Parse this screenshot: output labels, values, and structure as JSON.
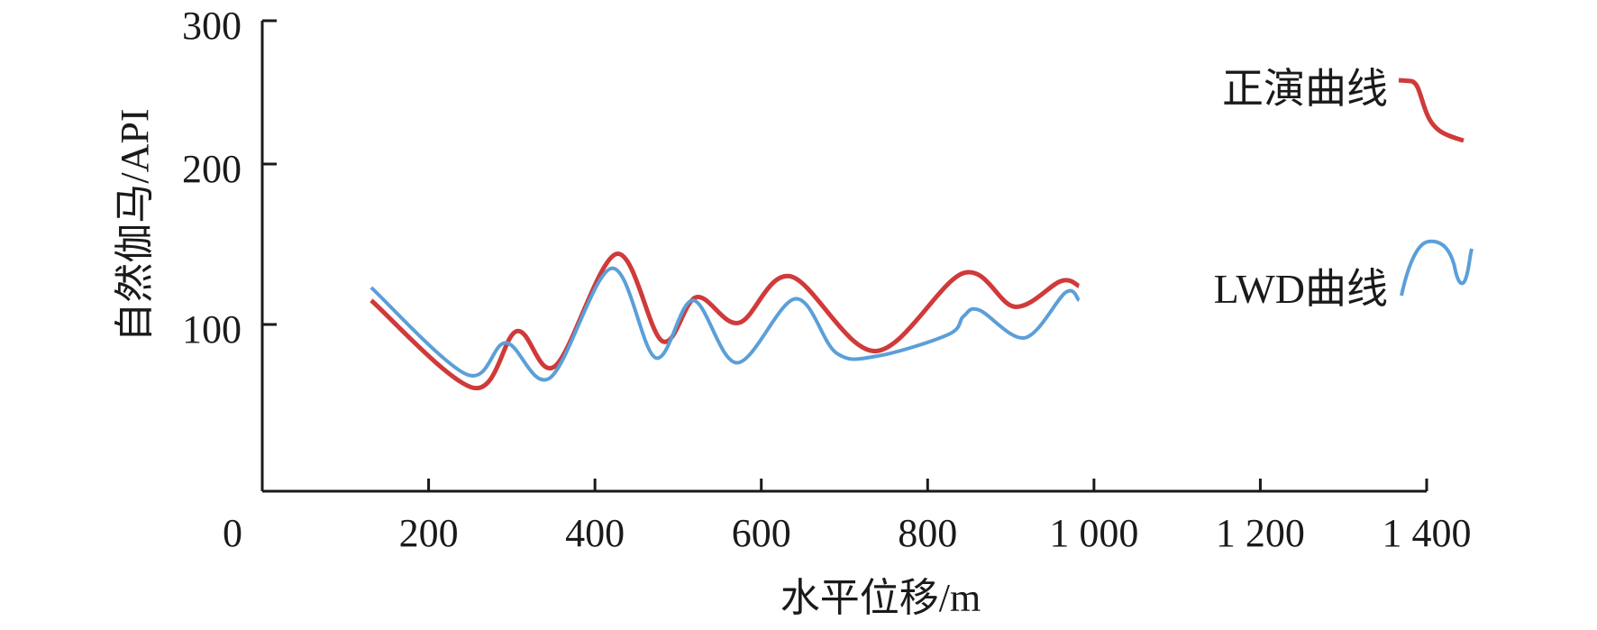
{
  "chart_data": {
    "type": "line",
    "title": "",
    "xlabel": "水平位移/m",
    "ylabel": "自然伽马/API",
    "xlim": [
      0,
      1400
    ],
    "ylim": [
      0,
      300
    ],
    "xticks": [
      0,
      200,
      400,
      600,
      800,
      1000,
      1200,
      1400
    ],
    "xtick_labels": [
      "0",
      "200",
      "400",
      "600",
      "800",
      "1 000",
      "1 200",
      "1 400"
    ],
    "yticks": [
      100,
      200,
      300
    ],
    "ytick_labels": [
      "100",
      "200",
      "300"
    ],
    "grid": false,
    "legend_position": "top-right",
    "series": [
      {
        "name": "正演曲线",
        "color": "#d03a3a",
        "x": [
          131,
          254,
          306,
          352,
          426,
          481,
          522,
          573,
          635,
          737,
          843,
          905,
          960,
          982
        ],
        "y": [
          115,
          62,
          96,
          75,
          144,
          90,
          117,
          101,
          130,
          84,
          132,
          111,
          127,
          124
        ]
      },
      {
        "name": "LWD曲线",
        "color": "#5b9fd8",
        "x": [
          131,
          246,
          293,
          346,
          420,
          473,
          518,
          571,
          641,
          690,
          739,
          825,
          843,
          862,
          917,
          966,
          982
        ],
        "y": [
          123,
          70,
          89,
          68,
          135,
          80,
          115,
          77,
          116,
          83,
          81,
          94,
          105,
          109,
          92,
          120,
          115
        ]
      }
    ]
  }
}
